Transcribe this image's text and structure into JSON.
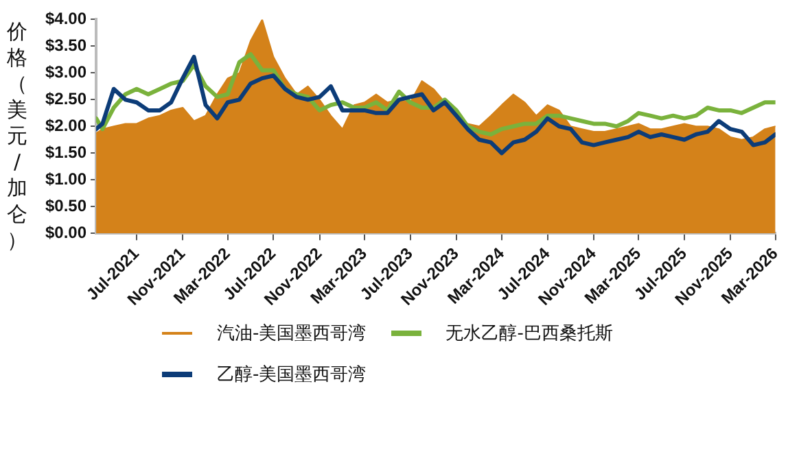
{
  "chart_data": {
    "type": "line",
    "ylabel": "价格（美元/加仑）",
    "legend": "bottom",
    "grid": false,
    "x": [
      "2021-03-15",
      "2021-04",
      "2021-05",
      "2021-06",
      "2021-07",
      "2021-08",
      "2021-09",
      "2021-10",
      "2021-11",
      "2021-12",
      "2022-01",
      "2022-02",
      "2022-03",
      "2022-04",
      "2022-05",
      "2022-06",
      "2022-07",
      "2022-08",
      "2022-09",
      "2022-10",
      "2022-11",
      "2022-12",
      "2023-01",
      "2023-02",
      "2023-03",
      "2023-04",
      "2023-05",
      "2023-06",
      "2023-07",
      "2023-08",
      "2023-09",
      "2023-10",
      "2023-11",
      "2023-12",
      "2024-01",
      "2024-02",
      "2024-03",
      "2024-04",
      "2024-05",
      "2024-06",
      "2024-07",
      "2024-08",
      "2024-09",
      "2024-10",
      "2024-11",
      "2024-12",
      "2025-01",
      "2025-02",
      "2025-03",
      "2025-04",
      "2025-05",
      "2025-06",
      "2025-07",
      "2025-08",
      "2025-09",
      "2025-10",
      "2025-11",
      "2025-12",
      "2026-01",
      "2026-02",
      "2026-03"
    ],
    "xlim": [
      "2021-03-15",
      "2026-03"
    ],
    "xticks": [
      {
        "value": "2021-07",
        "label": "Jul-2021"
      },
      {
        "value": "2021-11",
        "label": "Nov-2021"
      },
      {
        "value": "2022-03",
        "label": "Mar-2022"
      },
      {
        "value": "2022-07",
        "label": "Jul-2022"
      },
      {
        "value": "2022-11",
        "label": "Nov-2022"
      },
      {
        "value": "2023-03",
        "label": "Mar-2023"
      },
      {
        "value": "2023-07",
        "label": "Jul-2023"
      },
      {
        "value": "2023-11",
        "label": "Nov-2023"
      },
      {
        "value": "2024-03",
        "label": "Mar-2024"
      },
      {
        "value": "2024-07",
        "label": "Jul-2024"
      },
      {
        "value": "2024-11",
        "label": "Nov-2024"
      },
      {
        "value": "2025-03",
        "label": "Mar-2025"
      },
      {
        "value": "2025-07",
        "label": "Jul-2025"
      },
      {
        "value": "2025-11",
        "label": "Nov-2025"
      },
      {
        "value": "2026-03",
        "label": "Mar-2026"
      }
    ],
    "ylim": [
      0,
      4
    ],
    "yticks": [
      {
        "value": 0,
        "label": "$0.00"
      },
      {
        "value": 0.5,
        "label": "$0.50"
      },
      {
        "value": 1,
        "label": "$1.00"
      },
      {
        "value": 1.5,
        "label": "$1.50"
      },
      {
        "value": 2,
        "label": "$2.00"
      },
      {
        "value": 2.5,
        "label": "$2.50"
      },
      {
        "value": 3,
        "label": "$3.00"
      },
      {
        "value": 3.5,
        "label": "$3.50"
      },
      {
        "value": 4,
        "label": "$4.00"
      }
    ],
    "series": [
      {
        "name": "汽油-美国墨西哥湾",
        "type": "area",
        "color": "#d4821a",
        "values": [
          1.87,
          1.95,
          2.0,
          2.05,
          2.05,
          2.15,
          2.2,
          2.3,
          2.35,
          2.1,
          2.2,
          2.6,
          2.9,
          3.0,
          3.6,
          4.0,
          3.3,
          2.9,
          2.6,
          2.75,
          2.5,
          2.2,
          1.95,
          2.4,
          2.45,
          2.6,
          2.45,
          2.5,
          2.45,
          2.85,
          2.7,
          2.45,
          2.15,
          2.05,
          2.0,
          2.2,
          2.4,
          2.6,
          2.45,
          2.2,
          2.4,
          2.3,
          2.0,
          1.95,
          1.9,
          1.9,
          1.95,
          2.0,
          2.05,
          1.95,
          1.95,
          2.0,
          2.05,
          2.0,
          2.0,
          1.95,
          1.8,
          1.75,
          1.8,
          1.95,
          2.0
        ]
      },
      {
        "name": "乙醇-美国墨西哥湾",
        "color": "#0c3c78",
        "values": [
          1.95,
          2.05,
          2.7,
          2.5,
          2.45,
          2.3,
          2.3,
          2.45,
          2.9,
          3.3,
          2.4,
          2.15,
          2.45,
          2.5,
          2.8,
          2.9,
          2.95,
          2.7,
          2.55,
          2.5,
          2.55,
          2.75,
          2.3,
          2.3,
          2.3,
          2.25,
          2.25,
          2.5,
          2.55,
          2.6,
          2.3,
          2.45,
          2.2,
          1.95,
          1.75,
          1.7,
          1.5,
          1.7,
          1.75,
          1.9,
          2.15,
          2.0,
          1.95,
          1.7,
          1.65,
          1.7,
          1.75,
          1.8,
          1.9,
          1.8,
          1.85,
          1.8,
          1.75,
          1.85,
          1.9,
          2.1,
          1.95,
          1.9,
          1.65,
          1.7,
          1.85
        ]
      },
      {
        "name": "无水乙醇-巴西桑托斯",
        "color": "#7ab23c",
        "values": [
          2.15,
          1.95,
          2.35,
          2.6,
          2.7,
          2.6,
          2.7,
          2.8,
          2.85,
          3.15,
          2.75,
          2.55,
          2.6,
          3.2,
          3.35,
          3.05,
          3.05,
          2.7,
          2.6,
          2.55,
          2.3,
          2.4,
          2.45,
          2.35,
          2.35,
          2.45,
          2.3,
          2.65,
          2.45,
          2.35,
          2.35,
          2.5,
          2.3,
          2.0,
          1.9,
          1.85,
          1.95,
          2.0,
          2.05,
          2.05,
          2.2,
          2.2,
          2.15,
          2.1,
          2.05,
          2.05,
          2.0,
          2.1,
          2.25,
          2.2,
          2.15,
          2.2,
          2.15,
          2.2,
          2.35,
          2.3,
          2.3,
          2.25,
          2.35,
          2.45,
          2.45
        ]
      }
    ]
  }
}
